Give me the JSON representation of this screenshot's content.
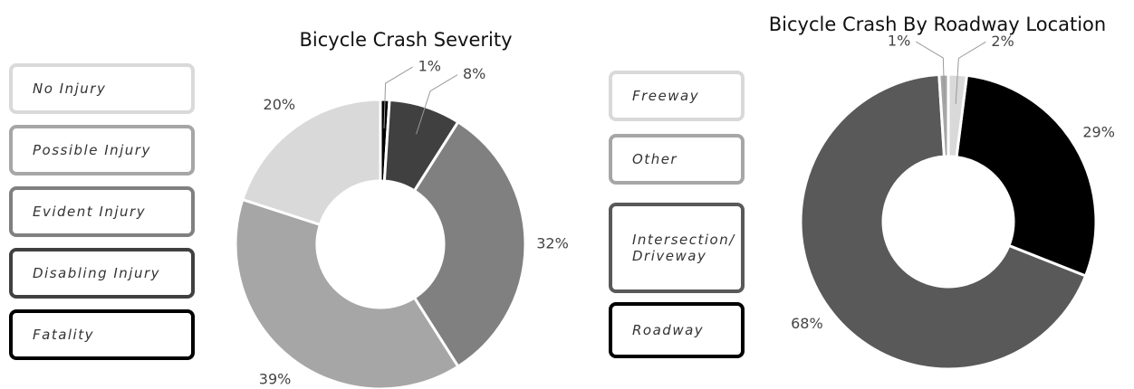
{
  "chart_data": [
    {
      "type": "donut",
      "title": "Bicycle Crash Severity",
      "series": [
        {
          "name": "No Injury",
          "color": "#d9d9d9",
          "values": [
            20
          ],
          "value_labels": [
            "20%"
          ]
        },
        {
          "name": "Possible Injury",
          "color": "#a6a6a6",
          "values": [
            39
          ],
          "value_labels": [
            "39%"
          ]
        },
        {
          "name": "Evident Injury",
          "color": "#808080",
          "values": [
            32
          ],
          "value_labels": [
            "32%"
          ]
        },
        {
          "name": "Disabling Injury",
          "color": "#404040",
          "values": [
            8
          ],
          "value_labels": [
            "8%"
          ]
        },
        {
          "name": "Fatality",
          "color": "#000000",
          "values": [
            1
          ],
          "value_labels": [
            "1%"
          ]
        }
      ]
    },
    {
      "type": "donut",
      "title": "Bicycle Crash By Roadway Location",
      "series": [
        {
          "name": "Freeway",
          "color": "#d9d9d9",
          "values": [
            2
          ],
          "value_labels": [
            "2%"
          ]
        },
        {
          "name": "Other",
          "color": "#a6a6a6",
          "values": [
            1
          ],
          "value_labels": [
            "1%"
          ]
        },
        {
          "name": "Intersection/ Driveway",
          "color": "#595959",
          "values": [
            68
          ],
          "value_labels": [
            "68%"
          ]
        },
        {
          "name": "Roadway",
          "color": "#000000",
          "values": [
            29
          ],
          "value_labels": [
            "29%"
          ]
        }
      ]
    }
  ]
}
